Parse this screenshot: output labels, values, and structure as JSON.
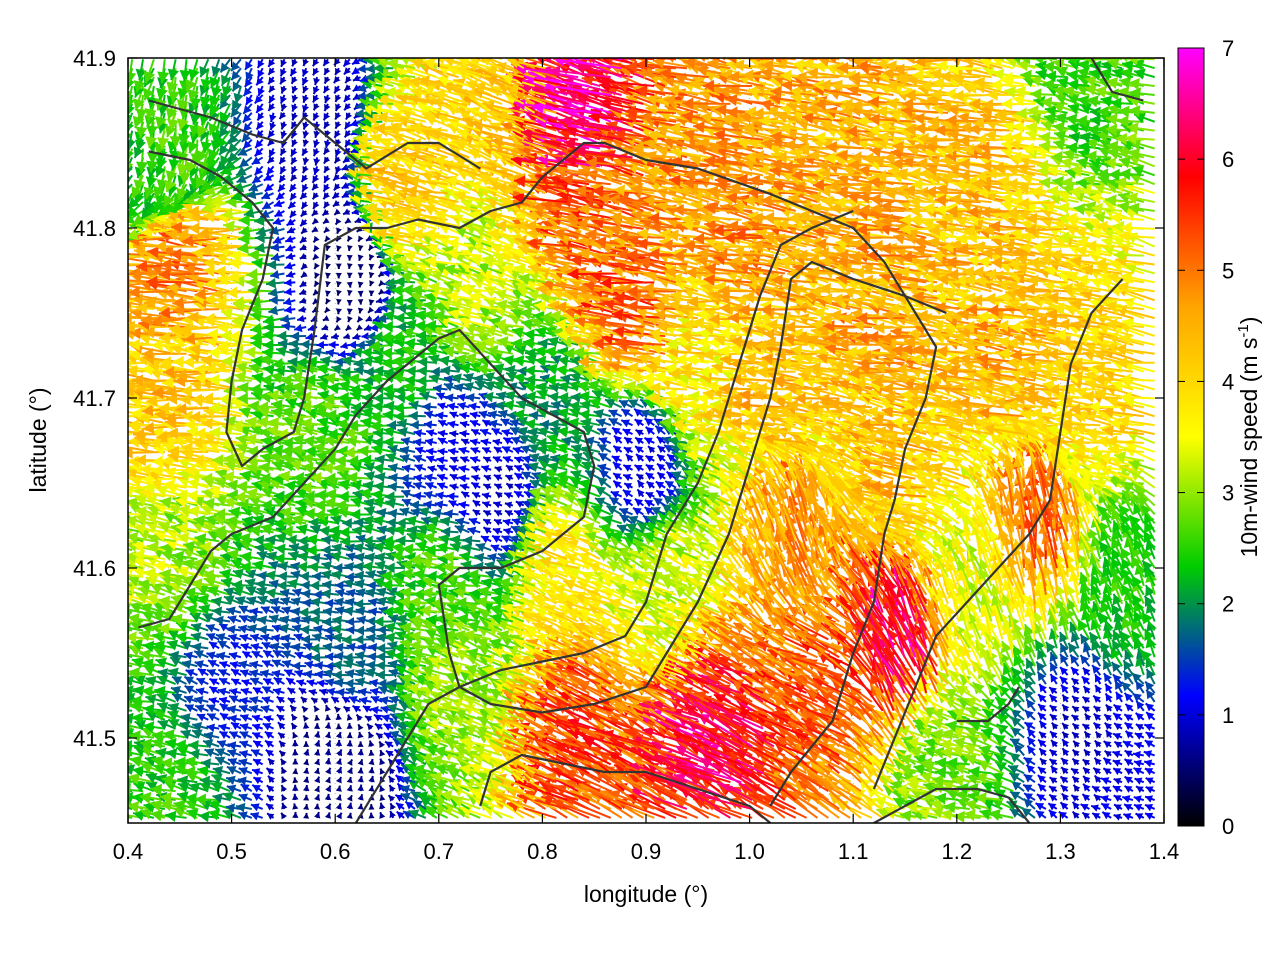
{
  "chart_data": {
    "type": "vector_field",
    "xlabel": "longitude (°)",
    "ylabel": "latitude (°)",
    "xlim": [
      0.4,
      1.4
    ],
    "ylim": [
      41.45,
      41.9
    ],
    "xticks": [
      "0.4",
      "0.5",
      "0.6",
      "0.7",
      "0.8",
      "0.9",
      "1.0",
      "1.1",
      "1.2",
      "1.3",
      "1.4"
    ],
    "yticks": [
      "41.5",
      "41.6",
      "41.7",
      "41.8",
      "41.9"
    ],
    "grid": true,
    "colorbar": {
      "label_main": "10m-wind speed (m s",
      "label_sup": "-1",
      "label_close": ")",
      "range": [
        0,
        7
      ],
      "ticks": [
        "0",
        "1",
        "2",
        "3",
        "4",
        "5",
        "6",
        "7"
      ],
      "stops": [
        "#000000",
        "#0000ff",
        "#00cc00",
        "#ffff00",
        "#ffa500",
        "#ff0000",
        "#ff00ff"
      ]
    },
    "field_regions": [
      {
        "lon": 0.45,
        "lat": 41.85,
        "u": -0.5,
        "v": -2.5
      },
      {
        "lon": 0.45,
        "lat": 41.7,
        "u": -4.2,
        "v": 0.3
      },
      {
        "lon": 0.47,
        "lat": 41.78,
        "u": -4.8,
        "v": 0.5
      },
      {
        "lon": 0.45,
        "lat": 41.6,
        "u": -3.0,
        "v": 0.8
      },
      {
        "lon": 0.5,
        "lat": 41.53,
        "u": -1.2,
        "v": 0.5
      },
      {
        "lon": 0.45,
        "lat": 41.47,
        "u": -2.4,
        "v": 0.6
      },
      {
        "lon": 0.58,
        "lat": 41.86,
        "u": -0.3,
        "v": -0.8
      },
      {
        "lon": 0.62,
        "lat": 41.77,
        "u": 0.0,
        "v": -0.5
      },
      {
        "lon": 0.6,
        "lat": 41.68,
        "u": -2.7,
        "v": 0.4
      },
      {
        "lon": 0.62,
        "lat": 41.56,
        "u": -1.7,
        "v": 0.2
      },
      {
        "lon": 0.6,
        "lat": 41.48,
        "u": 0.2,
        "v": 0.6
      },
      {
        "lon": 0.67,
        "lat": 41.72,
        "u": -2.3,
        "v": 0.2
      },
      {
        "lon": 0.68,
        "lat": 41.82,
        "u": -4.0,
        "v": 1.0
      },
      {
        "lon": 0.72,
        "lat": 41.67,
        "u": -1.0,
        "v": 0.3
      },
      {
        "lon": 0.72,
        "lat": 41.59,
        "u": -2.6,
        "v": 0.4
      },
      {
        "lon": 0.74,
        "lat": 41.53,
        "u": -2.8,
        "v": 1.2
      },
      {
        "lon": 0.75,
        "lat": 41.76,
        "u": -3.0,
        "v": 1.0
      },
      {
        "lon": 0.76,
        "lat": 41.64,
        "u": -0.8,
        "v": 0.4
      },
      {
        "lon": 0.78,
        "lat": 41.87,
        "u": -3.8,
        "v": 1.6
      },
      {
        "lon": 0.85,
        "lat": 41.87,
        "u": -6.3,
        "v": 2.0
      },
      {
        "lon": 0.87,
        "lat": 41.8,
        "u": -5.0,
        "v": 1.0
      },
      {
        "lon": 0.82,
        "lat": 41.7,
        "u": -2.0,
        "v": 0.4
      },
      {
        "lon": 0.83,
        "lat": 41.6,
        "u": -3.5,
        "v": 1.5
      },
      {
        "lon": 0.85,
        "lat": 41.5,
        "u": -4.8,
        "v": 2.5
      },
      {
        "lon": 0.9,
        "lat": 41.75,
        "u": -5.0,
        "v": 1.0
      },
      {
        "lon": 0.9,
        "lat": 41.66,
        "u": -0.8,
        "v": 0.6
      },
      {
        "lon": 0.93,
        "lat": 41.58,
        "u": -3.0,
        "v": 1.5
      },
      {
        "lon": 0.95,
        "lat": 41.85,
        "u": -4.6,
        "v": 1.0
      },
      {
        "lon": 0.97,
        "lat": 41.72,
        "u": -3.8,
        "v": 0.5
      },
      {
        "lon": 0.98,
        "lat": 41.5,
        "u": -5.3,
        "v": 2.8
      },
      {
        "lon": 1.02,
        "lat": 41.8,
        "u": -4.6,
        "v": 0.8
      },
      {
        "lon": 1.05,
        "lat": 41.7,
        "u": -4.2,
        "v": 0.5
      },
      {
        "lon": 1.05,
        "lat": 41.62,
        "u": -1.5,
        "v": 4.5
      },
      {
        "lon": 1.08,
        "lat": 41.53,
        "u": -4.5,
        "v": 2.5
      },
      {
        "lon": 1.12,
        "lat": 41.86,
        "u": -4.4,
        "v": 0.6
      },
      {
        "lon": 1.15,
        "lat": 41.55,
        "u": -2.6,
        "v": 5.6
      },
      {
        "lon": 1.15,
        "lat": 41.75,
        "u": -4.5,
        "v": 0.5
      },
      {
        "lon": 1.17,
        "lat": 41.66,
        "u": -4.2,
        "v": 0.8
      },
      {
        "lon": 1.2,
        "lat": 41.48,
        "u": -2.8,
        "v": 0.6
      },
      {
        "lon": 1.22,
        "lat": 41.58,
        "u": -1.2,
        "v": 3.2
      },
      {
        "lon": 1.25,
        "lat": 41.83,
        "u": -4.3,
        "v": 0.4
      },
      {
        "lon": 1.27,
        "lat": 41.72,
        "u": -4.4,
        "v": 0.6
      },
      {
        "lon": 1.28,
        "lat": 41.62,
        "u": -0.8,
        "v": 5.0
      },
      {
        "lon": 1.32,
        "lat": 41.5,
        "u": -0.6,
        "v": 0.6
      },
      {
        "lon": 1.33,
        "lat": 41.88,
        "u": -2.5,
        "v": 0.5
      },
      {
        "lon": 1.35,
        "lat": 41.7,
        "u": -4.0,
        "v": 0.6
      },
      {
        "lon": 1.37,
        "lat": 41.58,
        "u": -1.0,
        "v": 2.2
      },
      {
        "lon": 1.38,
        "lat": 41.47,
        "u": -1.0,
        "v": 0.4
      }
    ],
    "contours": [
      [
        [
          0.42,
          41.875
        ],
        [
          0.48,
          41.865
        ],
        [
          0.52,
          41.855
        ],
        [
          0.55,
          41.85
        ],
        [
          0.57,
          41.865
        ],
        [
          0.6,
          41.85
        ],
        [
          0.63,
          41.835
        ],
        [
          0.67,
          41.85
        ],
        [
          0.7,
          41.85
        ],
        [
          0.74,
          41.835
        ]
      ],
      [
        [
          0.42,
          41.845
        ],
        [
          0.46,
          41.84
        ],
        [
          0.49,
          41.83
        ],
        [
          0.52,
          41.815
        ],
        [
          0.54,
          41.8
        ],
        [
          0.53,
          41.77
        ],
        [
          0.51,
          41.74
        ],
        [
          0.5,
          41.71
        ],
        [
          0.495,
          41.68
        ],
        [
          0.51,
          41.66
        ],
        [
          0.53,
          41.67
        ],
        [
          0.56,
          41.68
        ],
        [
          0.57,
          41.7
        ],
        [
          0.58,
          41.74
        ],
        [
          0.59,
          41.79
        ],
        [
          0.62,
          41.8
        ],
        [
          0.65,
          41.8
        ],
        [
          0.68,
          41.805
        ],
        [
          0.72,
          41.8
        ],
        [
          0.75,
          41.81
        ],
        [
          0.78,
          41.815
        ],
        [
          0.8,
          41.83
        ],
        [
          0.82,
          41.84
        ],
        [
          0.84,
          41.85
        ],
        [
          0.86,
          41.85
        ],
        [
          0.9,
          41.84
        ],
        [
          0.95,
          41.835
        ],
        [
          1.02,
          41.82
        ],
        [
          1.06,
          41.81
        ],
        [
          1.1,
          41.8
        ],
        [
          1.13,
          41.78
        ],
        [
          1.16,
          41.75
        ],
        [
          1.18,
          41.73
        ],
        [
          1.17,
          41.7
        ],
        [
          1.15,
          41.67
        ],
        [
          1.14,
          41.64
        ],
        [
          1.13,
          41.62
        ],
        [
          1.12,
          41.58
        ],
        [
          1.1,
          41.55
        ],
        [
          1.08,
          41.51
        ],
        [
          1.04,
          41.48
        ],
        [
          1.02,
          41.46
        ]
      ],
      [
        [
          0.41,
          41.565
        ],
        [
          0.44,
          41.57
        ],
        [
          0.46,
          41.59
        ],
        [
          0.48,
          41.61
        ],
        [
          0.5,
          41.62
        ],
        [
          0.54,
          41.63
        ],
        [
          0.57,
          41.65
        ],
        [
          0.6,
          41.67
        ],
        [
          0.62,
          41.69
        ],
        [
          0.65,
          41.71
        ],
        [
          0.67,
          41.72
        ],
        [
          0.7,
          41.735
        ],
        [
          0.72,
          41.74
        ],
        [
          0.75,
          41.72
        ],
        [
          0.78,
          41.7
        ],
        [
          0.81,
          41.69
        ],
        [
          0.84,
          41.68
        ],
        [
          0.85,
          41.66
        ],
        [
          0.84,
          41.63
        ],
        [
          0.8,
          41.61
        ],
        [
          0.76,
          41.6
        ],
        [
          0.72,
          41.6
        ],
        [
          0.7,
          41.59
        ],
        [
          0.71,
          41.55
        ],
        [
          0.72,
          41.53
        ],
        [
          0.75,
          41.52
        ],
        [
          0.8,
          41.515
        ],
        [
          0.85,
          41.52
        ],
        [
          0.9,
          41.53
        ],
        [
          0.92,
          41.55
        ],
        [
          0.95,
          41.58
        ],
        [
          0.98,
          41.62
        ],
        [
          1.0,
          41.66
        ],
        [
          1.02,
          41.7
        ],
        [
          1.03,
          41.73
        ],
        [
          1.04,
          41.77
        ],
        [
          1.06,
          41.78
        ],
        [
          1.1,
          41.77
        ],
        [
          1.15,
          41.76
        ],
        [
          1.19,
          41.75
        ]
      ],
      [
        [
          0.62,
          41.45
        ],
        [
          0.65,
          41.48
        ],
        [
          0.67,
          41.5
        ],
        [
          0.69,
          41.52
        ],
        [
          0.72,
          41.53
        ],
        [
          0.76,
          41.54
        ],
        [
          0.8,
          41.545
        ],
        [
          0.84,
          41.55
        ],
        [
          0.88,
          41.56
        ],
        [
          0.9,
          41.58
        ],
        [
          0.92,
          41.62
        ],
        [
          0.95,
          41.65
        ],
        [
          0.97,
          41.68
        ],
        [
          0.99,
          41.72
        ],
        [
          1.01,
          41.76
        ],
        [
          1.03,
          41.79
        ],
        [
          1.06,
          41.8
        ],
        [
          1.1,
          41.81
        ]
      ],
      [
        [
          0.74,
          41.46
        ],
        [
          0.75,
          41.48
        ],
        [
          0.78,
          41.49
        ],
        [
          0.82,
          41.485
        ],
        [
          0.86,
          41.48
        ],
        [
          0.9,
          41.48
        ],
        [
          0.95,
          41.47
        ],
        [
          1.0,
          41.46
        ],
        [
          1.02,
          41.45
        ]
      ],
      [
        [
          1.12,
          41.45
        ],
        [
          1.15,
          41.46
        ],
        [
          1.18,
          41.47
        ],
        [
          1.22,
          41.47
        ],
        [
          1.25,
          41.465
        ],
        [
          1.27,
          41.45
        ]
      ],
      [
        [
          1.2,
          41.51
        ],
        [
          1.23,
          41.51
        ],
        [
          1.25,
          41.52
        ],
        [
          1.26,
          41.53
        ]
      ],
      [
        [
          1.36,
          41.77
        ],
        [
          1.33,
          41.75
        ],
        [
          1.31,
          41.72
        ],
        [
          1.3,
          41.68
        ],
        [
          1.29,
          41.64
        ],
        [
          1.27,
          41.62
        ],
        [
          1.24,
          41.6
        ],
        [
          1.21,
          41.58
        ],
        [
          1.18,
          41.56
        ],
        [
          1.16,
          41.53
        ],
        [
          1.14,
          41.5
        ],
        [
          1.12,
          41.47
        ]
      ],
      [
        [
          1.38,
          41.875
        ],
        [
          1.35,
          41.88
        ],
        [
          1.33,
          41.9
        ]
      ]
    ]
  }
}
